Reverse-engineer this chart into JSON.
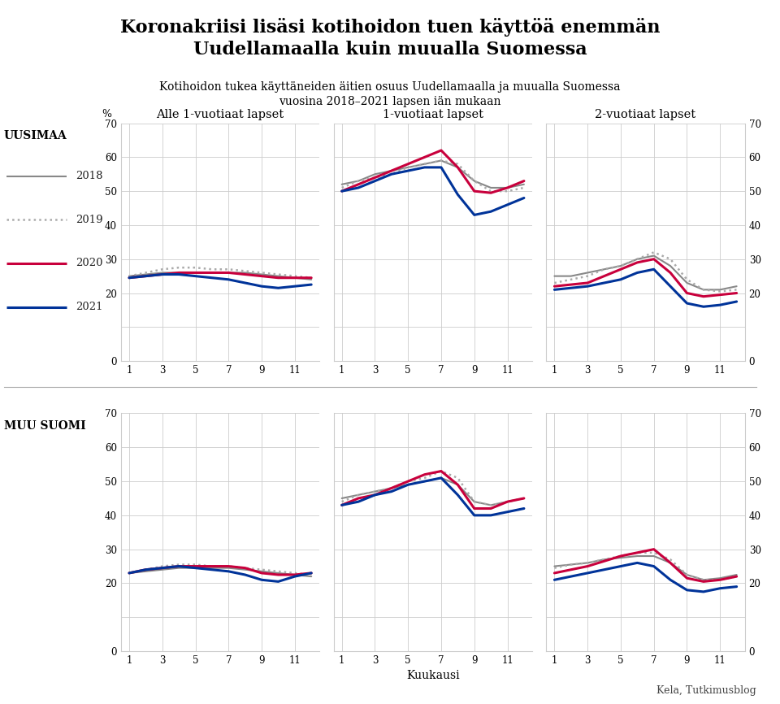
{
  "title": "Koronakriisi lisäsi kotihoidon tuen käyttöä enemmän\nUudellamaalla kuin muualla Suomessa",
  "subtitle": "Kotihoidon tukea käyttäneiden äitien osuus Uudellamaalla ja muualla Suomessa\nvuosina 2018–2021 lapsen iän mukaan",
  "source": "Kela, Tutkimusblog",
  "col_titles": [
    "Alle 1-vuotiaat lapset",
    "1-vuotiaat lapset",
    "2-vuotiaat lapset"
  ],
  "row_labels": [
    "UUSIMAA",
    "MUU SUOMI"
  ],
  "xlabel": "Kuukausi",
  "ylabel": "%",
  "ylim": [
    0,
    70
  ],
  "yticks": [
    0,
    10,
    20,
    30,
    40,
    50,
    60,
    70
  ],
  "ytick_labels": [
    "0",
    "",
    "20",
    "30",
    "40",
    "50",
    "60",
    "70"
  ],
  "xticks": [
    1,
    3,
    5,
    7,
    9,
    11
  ],
  "months": [
    1,
    2,
    3,
    4,
    5,
    6,
    7,
    8,
    9,
    10,
    11,
    12
  ],
  "colors": {
    "2018": "#888888",
    "2019": "#aaaaaa",
    "2020": "#c8003c",
    "2021": "#003399"
  },
  "linestyles": {
    "2018": "solid",
    "2019": "dotted",
    "2020": "solid",
    "2021": "solid"
  },
  "linewidths": {
    "2018": 1.5,
    "2019": 1.8,
    "2020": 2.2,
    "2021": 2.2
  },
  "uusimaa": {
    "alle1": {
      "2018": [
        25,
        25.5,
        26,
        26,
        26,
        26,
        26,
        26,
        25.5,
        25,
        24.5,
        24
      ],
      "2019": [
        25,
        26,
        27,
        27.5,
        27.5,
        27,
        27,
        26.5,
        26,
        25.5,
        25,
        24.5
      ],
      "2020": [
        24.5,
        25,
        25.5,
        26,
        26,
        26,
        26,
        25.5,
        25,
        24.5,
        24.5,
        24.5
      ],
      "2021": [
        24.5,
        25,
        25.5,
        25.5,
        25,
        24.5,
        24,
        23,
        22,
        21.5,
        22,
        22.5
      ]
    },
    "1vuotiaat": {
      "2018": [
        52,
        53,
        55,
        56,
        57,
        58,
        59,
        57,
        53,
        51,
        51,
        52
      ],
      "2019": [
        51,
        53,
        54,
        55,
        57,
        58,
        59,
        58,
        53,
        50,
        50,
        51
      ],
      "2020": [
        50,
        52,
        54,
        56,
        58,
        60,
        62,
        57,
        50,
        49.5,
        51,
        53
      ],
      "2021": [
        50,
        51,
        53,
        55,
        56,
        57,
        57,
        49,
        43,
        44,
        46,
        48
      ]
    },
    "2vuotiaat": {
      "2018": [
        25,
        25,
        26,
        27,
        28,
        30,
        31,
        28,
        23,
        21,
        21,
        22
      ],
      "2019": [
        23,
        24,
        25,
        27,
        28,
        30,
        32,
        30,
        24,
        21,
        20.5,
        21
      ],
      "2020": [
        22,
        22.5,
        23,
        25,
        27,
        29,
        30,
        26,
        20,
        19,
        19.5,
        20
      ],
      "2021": [
        21,
        21.5,
        22,
        23,
        24,
        26,
        27,
        22,
        17,
        16,
        16.5,
        17.5
      ]
    }
  },
  "muu_suomi": {
    "alle1": {
      "2018": [
        23,
        23.5,
        24,
        24.5,
        24.5,
        24.5,
        24.5,
        24,
        23.5,
        23,
        22.5,
        22
      ],
      "2019": [
        23,
        24,
        25,
        25.5,
        25.5,
        25,
        25,
        24.5,
        24,
        23.5,
        23,
        22.5
      ],
      "2020": [
        23,
        24,
        24.5,
        25,
        25,
        25,
        25,
        24.5,
        23,
        22.5,
        22.5,
        23
      ],
      "2021": [
        23,
        24,
        24.5,
        25,
        24.5,
        24,
        23.5,
        22.5,
        21,
        20.5,
        22,
        23
      ]
    },
    "1vuotiaat": {
      "2018": [
        45,
        46,
        47,
        48,
        49,
        50,
        51,
        49,
        44,
        43,
        44,
        45
      ],
      "2019": [
        44,
        46,
        47,
        48,
        50,
        51,
        53,
        51,
        44,
        43,
        44,
        45
      ],
      "2020": [
        43,
        45,
        46,
        48,
        50,
        52,
        53,
        49,
        42,
        42,
        44,
        45
      ],
      "2021": [
        43,
        44,
        46,
        47,
        49,
        50,
        51,
        46,
        40,
        40,
        41,
        42
      ]
    },
    "2vuotiaat": {
      "2018": [
        25,
        25.5,
        26,
        27,
        27.5,
        28,
        28,
        26,
        22.5,
        21,
        21.5,
        22.5
      ],
      "2019": [
        24.5,
        25.5,
        26,
        27,
        28,
        29,
        29,
        27,
        22.5,
        21,
        21,
        22
      ],
      "2020": [
        23,
        24,
        25,
        26.5,
        28,
        29,
        30,
        26,
        21.5,
        20.5,
        21,
        22
      ],
      "2021": [
        21,
        22,
        23,
        24,
        25,
        26,
        25,
        21,
        18,
        17.5,
        18.5,
        19
      ]
    }
  },
  "background_color": "#ffffff",
  "grid_color": "#cccccc"
}
